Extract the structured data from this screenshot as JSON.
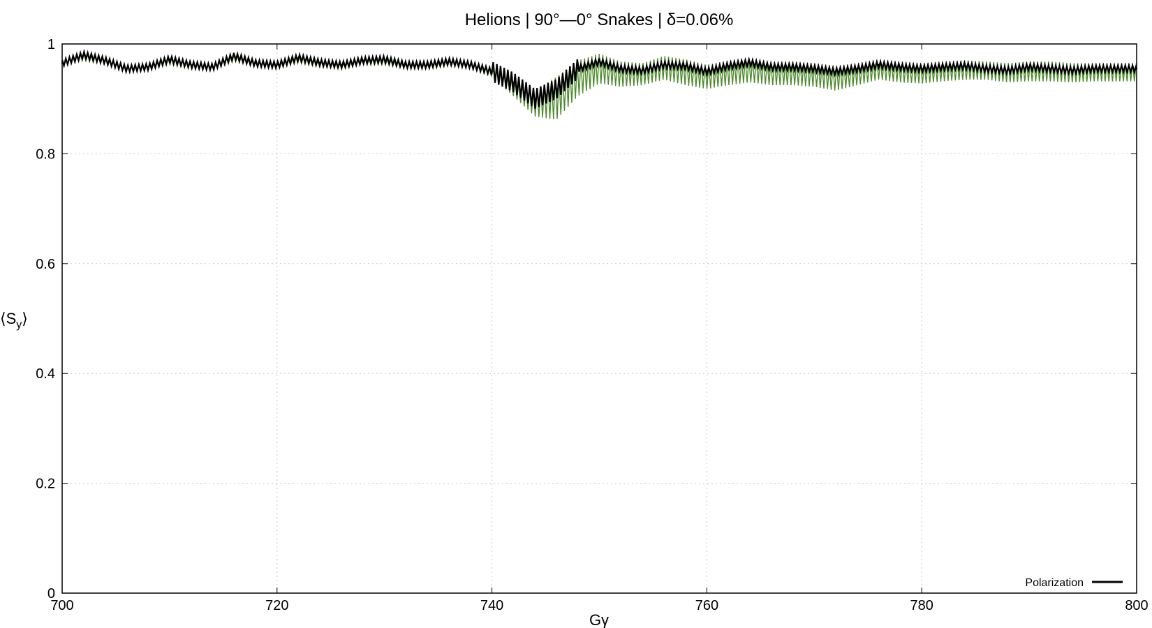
{
  "chart_data": {
    "type": "line",
    "title": "Helions | 90°—0° Snakes | δ=0.06%",
    "xlabel": "Gγ",
    "ylabel": "⟨S",
    "ylabel_sub": "y",
    "ylabel_close": "⟩",
    "xlim": [
      700,
      800
    ],
    "ylim": [
      0,
      1
    ],
    "x_ticks": [
      "700",
      "720",
      "740",
      "760",
      "780",
      "800"
    ],
    "y_ticks": [
      "0",
      "0.2",
      "0.4",
      "0.6",
      "0.8",
      "1"
    ],
    "grid": true,
    "legend_position": "bottom-right",
    "colors": {
      "green_band": "#4f8a2f",
      "black_line": "#000000",
      "grid": "#c8c8c8"
    },
    "series": [
      {
        "name": "Polarization",
        "color": "#000000",
        "x": [
          700,
          702,
          704,
          706,
          708,
          710,
          712,
          714,
          716,
          718,
          720,
          722,
          724,
          726,
          728,
          730,
          732,
          734,
          736,
          738,
          740,
          742,
          744,
          746,
          748,
          750,
          752,
          754,
          756,
          758,
          760,
          762,
          764,
          766,
          768,
          770,
          772,
          774,
          776,
          778,
          780,
          782,
          784,
          786,
          788,
          790,
          792,
          794,
          796,
          798,
          800
        ],
        "y": [
          0.965,
          0.98,
          0.97,
          0.955,
          0.958,
          0.972,
          0.962,
          0.958,
          0.978,
          0.965,
          0.962,
          0.975,
          0.966,
          0.962,
          0.97,
          0.972,
          0.962,
          0.962,
          0.968,
          0.962,
          0.95,
          0.93,
          0.9,
          0.918,
          0.955,
          0.968,
          0.955,
          0.952,
          0.962,
          0.96,
          0.95,
          0.96,
          0.966,
          0.958,
          0.958,
          0.955,
          0.95,
          0.955,
          0.962,
          0.958,
          0.955,
          0.958,
          0.96,
          0.955,
          0.952,
          0.958,
          0.955,
          0.952,
          0.955,
          0.955,
          0.955
        ]
      },
      {
        "color": "#4f8a2f",
        "x": [
          700,
          702,
          704,
          706,
          708,
          710,
          712,
          714,
          716,
          718,
          720,
          722,
          724,
          726,
          728,
          730,
          732,
          734,
          736,
          738,
          740,
          742,
          744,
          746,
          748,
          750,
          752,
          754,
          756,
          758,
          760,
          762,
          764,
          766,
          768,
          770,
          772,
          774,
          776,
          778,
          780,
          782,
          784,
          786,
          788,
          790,
          792,
          794,
          796,
          798,
          800
        ],
        "y_low": [
          0.96,
          0.97,
          0.962,
          0.948,
          0.952,
          0.962,
          0.955,
          0.952,
          0.968,
          0.958,
          0.955,
          0.965,
          0.958,
          0.955,
          0.962,
          0.962,
          0.955,
          0.955,
          0.96,
          0.955,
          0.94,
          0.905,
          0.868,
          0.862,
          0.905,
          0.928,
          0.922,
          0.925,
          0.935,
          0.925,
          0.918,
          0.925,
          0.93,
          0.925,
          0.925,
          0.922,
          0.915,
          0.925,
          0.935,
          0.93,
          0.928,
          0.932,
          0.935,
          0.935,
          0.93,
          0.932,
          0.932,
          0.93,
          0.932,
          0.932,
          0.932
        ],
        "y_high": [
          0.97,
          0.982,
          0.974,
          0.96,
          0.962,
          0.975,
          0.966,
          0.962,
          0.98,
          0.968,
          0.964,
          0.978,
          0.968,
          0.964,
          0.972,
          0.974,
          0.964,
          0.964,
          0.97,
          0.965,
          0.955,
          0.935,
          0.915,
          0.94,
          0.97,
          0.982,
          0.968,
          0.965,
          0.978,
          0.972,
          0.962,
          0.97,
          0.975,
          0.968,
          0.968,
          0.965,
          0.96,
          0.965,
          0.972,
          0.968,
          0.965,
          0.968,
          0.97,
          0.968,
          0.965,
          0.968,
          0.968,
          0.965,
          0.965,
          0.965,
          0.965
        ]
      }
    ]
  }
}
